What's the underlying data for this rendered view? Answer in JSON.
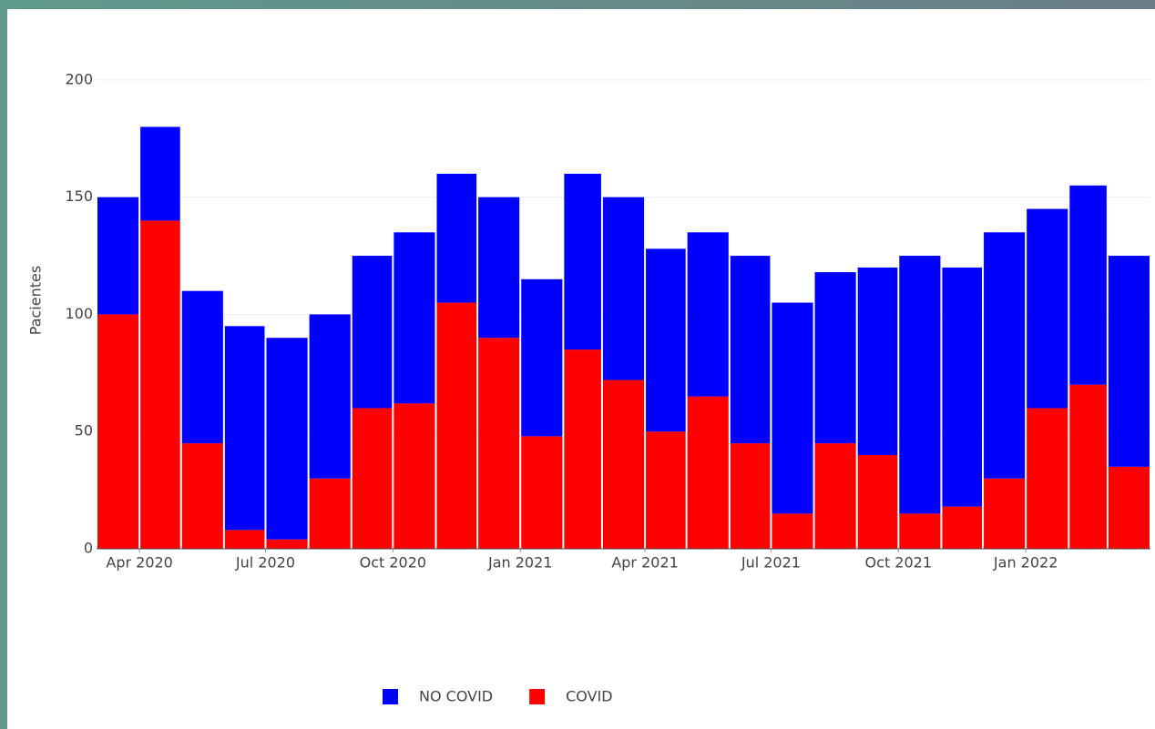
{
  "chart_data": {
    "type": "bar",
    "stacked": true,
    "y_label": "Pacientes",
    "x": [
      "2020-03",
      "2020-04",
      "2020-05",
      "2020-06",
      "2020-07",
      "2020-08",
      "2020-09",
      "2020-10",
      "2020-11",
      "2020-12",
      "2021-01",
      "2021-02",
      "2021-03",
      "2021-04",
      "2021-05",
      "2021-06",
      "2021-07",
      "2021-08",
      "2021-09",
      "2021-10",
      "2021-11",
      "2021-12",
      "2022-01",
      "2022-02",
      "2022-03"
    ],
    "series": [
      {
        "name": "COVID",
        "color": "#ff0000",
        "values": [
          100,
          140,
          45,
          8,
          4,
          30,
          60,
          62,
          105,
          90,
          48,
          85,
          72,
          50,
          65,
          45,
          15,
          45,
          40,
          15,
          18,
          30,
          60,
          70,
          35
        ]
      },
      {
        "name": "NO COVID",
        "color": "#0000ff",
        "values": [
          50,
          40,
          65,
          87,
          86,
          70,
          65,
          73,
          55,
          60,
          67,
          75,
          78,
          78,
          70,
          80,
          90,
          73,
          80,
          110,
          102,
          105,
          85,
          85,
          90
        ]
      }
    ],
    "legend_order": [
      "NO COVID",
      "COVID"
    ],
    "xlim": [
      "2020-03",
      "2022-04"
    ],
    "xticks": [
      {
        "value": "2020-04",
        "label": "Apr 2020"
      },
      {
        "value": "2020-07",
        "label": "Jul 2020"
      },
      {
        "value": "2020-10",
        "label": "Oct 2020"
      },
      {
        "value": "2021-01",
        "label": "Jan 2021"
      },
      {
        "value": "2021-04",
        "label": "Apr 2021"
      },
      {
        "value": "2021-07",
        "label": "Jul 2021"
      },
      {
        "value": "2021-10",
        "label": "Oct 2021"
      },
      {
        "value": "2022-01",
        "label": "Jan 2022"
      }
    ],
    "ylim": [
      0,
      205
    ],
    "yticks": [
      0,
      50,
      100,
      150,
      200
    ],
    "grid": true,
    "legend": "bottom"
  }
}
